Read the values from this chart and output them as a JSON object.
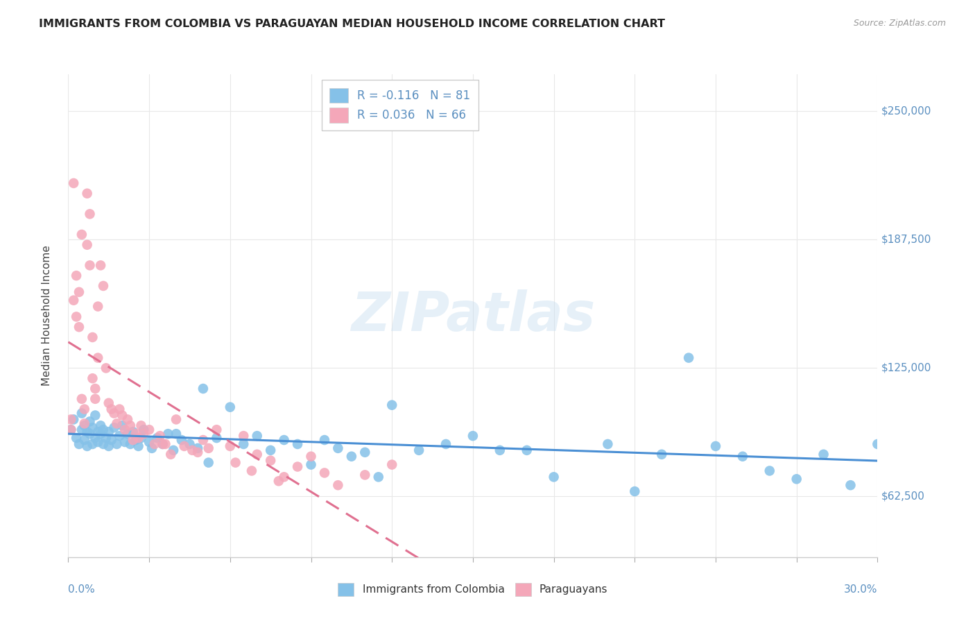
{
  "title": "IMMIGRANTS FROM COLOMBIA VS PARAGUAYAN MEDIAN HOUSEHOLD INCOME CORRELATION CHART",
  "source": "Source: ZipAtlas.com",
  "ylabel": "Median Household Income",
  "ytick_vals": [
    62500,
    125000,
    187500,
    250000
  ],
  "ytick_labels": [
    "$62,500",
    "$125,000",
    "$187,500",
    "$250,000"
  ],
  "xmin": 0.0,
  "xmax": 0.3,
  "ymin": 33000,
  "ymax": 268000,
  "colombia_color": "#85c1e8",
  "paraguay_color": "#f4a7b9",
  "trend_colombia_color": "#4a8fd4",
  "trend_paraguay_color": "#e07090",
  "colombia_R": -0.116,
  "colombia_N": 81,
  "paraguay_R": 0.036,
  "paraguay_N": 66,
  "watermark": "ZIPatlas",
  "background_color": "#ffffff",
  "grid_color": "#e8e8e8",
  "title_color": "#222222",
  "axis_label_color": "#5a8fc0",
  "colombia_x": [
    0.001,
    0.002,
    0.003,
    0.004,
    0.005,
    0.005,
    0.006,
    0.006,
    0.007,
    0.007,
    0.008,
    0.008,
    0.009,
    0.009,
    0.01,
    0.01,
    0.011,
    0.011,
    0.012,
    0.012,
    0.013,
    0.013,
    0.014,
    0.015,
    0.015,
    0.016,
    0.017,
    0.018,
    0.019,
    0.02,
    0.021,
    0.022,
    0.023,
    0.024,
    0.025,
    0.026,
    0.027,
    0.028,
    0.03,
    0.031,
    0.033,
    0.035,
    0.037,
    0.039,
    0.042,
    0.045,
    0.05,
    0.055,
    0.06,
    0.065,
    0.07,
    0.075,
    0.08,
    0.085,
    0.09,
    0.1,
    0.11,
    0.12,
    0.13,
    0.15,
    0.17,
    0.2,
    0.22,
    0.24,
    0.25,
    0.28,
    0.3,
    0.04,
    0.048,
    0.052,
    0.095,
    0.105,
    0.115,
    0.14,
    0.16,
    0.18,
    0.21,
    0.23,
    0.27,
    0.29,
    0.26
  ],
  "colombia_y": [
    95000,
    100000,
    91000,
    88000,
    103000,
    95000,
    97000,
    90000,
    94000,
    87000,
    99000,
    93000,
    88000,
    96000,
    102000,
    91000,
    94000,
    89000,
    97000,
    93000,
    88000,
    95000,
    91000,
    87000,
    94000,
    90000,
    96000,
    88000,
    92000,
    97000,
    89000,
    93000,
    88000,
    94000,
    90000,
    87000,
    91000,
    95000,
    89000,
    86000,
    91000,
    88000,
    93000,
    85000,
    90000,
    88000,
    115000,
    91000,
    106000,
    88000,
    92000,
    85000,
    90000,
    88000,
    78000,
    86000,
    84000,
    107000,
    85000,
    92000,
    85000,
    88000,
    83000,
    87000,
    82000,
    83000,
    88000,
    93000,
    86000,
    79000,
    90000,
    82000,
    72000,
    88000,
    85000,
    72000,
    65000,
    130000,
    71000,
    68000,
    75000
  ],
  "paraguay_x": [
    0.001,
    0.001,
    0.002,
    0.002,
    0.003,
    0.003,
    0.004,
    0.004,
    0.005,
    0.005,
    0.006,
    0.006,
    0.007,
    0.007,
    0.008,
    0.008,
    0.009,
    0.009,
    0.01,
    0.01,
    0.011,
    0.011,
    0.012,
    0.013,
    0.014,
    0.015,
    0.016,
    0.017,
    0.018,
    0.019,
    0.02,
    0.021,
    0.022,
    0.023,
    0.024,
    0.025,
    0.026,
    0.027,
    0.028,
    0.03,
    0.032,
    0.034,
    0.036,
    0.038,
    0.04,
    0.043,
    0.046,
    0.05,
    0.055,
    0.06,
    0.065,
    0.07,
    0.075,
    0.08,
    0.085,
    0.09,
    0.095,
    0.1,
    0.11,
    0.12,
    0.035,
    0.048,
    0.052,
    0.062,
    0.068,
    0.078
  ],
  "paraguay_y": [
    100000,
    95000,
    215000,
    158000,
    170000,
    150000,
    162000,
    145000,
    190000,
    110000,
    105000,
    98000,
    210000,
    185000,
    200000,
    175000,
    140000,
    120000,
    115000,
    110000,
    130000,
    155000,
    175000,
    165000,
    125000,
    108000,
    105000,
    103000,
    98000,
    105000,
    102000,
    95000,
    100000,
    97000,
    90000,
    93000,
    91000,
    97000,
    93000,
    95000,
    88000,
    92000,
    88000,
    83000,
    100000,
    87000,
    85000,
    90000,
    95000,
    87000,
    92000,
    83000,
    80000,
    72000,
    77000,
    82000,
    74000,
    68000,
    73000,
    78000,
    88000,
    84000,
    86000,
    79000,
    75000,
    70000
  ]
}
